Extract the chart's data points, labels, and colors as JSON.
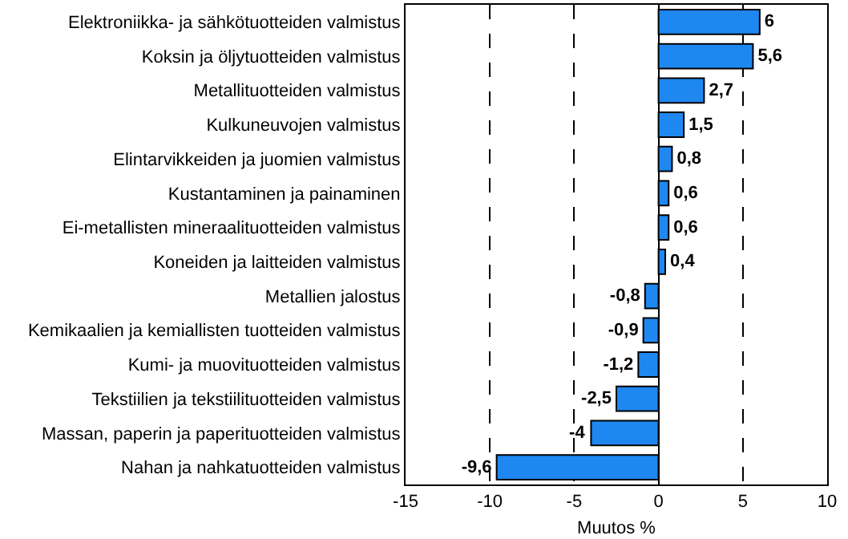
{
  "chart_data": {
    "type": "bar",
    "orientation": "horizontal",
    "xlabel": "Muutos %",
    "categories": [
      "Elektroniikka- ja sähkötuotteiden valmistus",
      "Koksin ja öljytuotteiden valmistus",
      "Metallituotteiden valmistus",
      "Kulkuneuvojen valmistus",
      "Elintarvikkeiden ja juomien valmistus",
      "Kustantaminen ja painaminen",
      "Ei-metallisten mineraalituotteiden valmistus",
      "Koneiden ja laitteiden valmistus",
      "Metallien jalostus",
      "Kemikaalien ja kemiallisten tuotteiden valmistus",
      "Kumi- ja muovituotteiden valmistus",
      "Tekstiilien ja tekstiilituotteiden valmistus",
      "Massan, paperin ja paperituotteiden valmistus",
      "Nahan ja nahkatuotteiden valmistus"
    ],
    "values": [
      6,
      5.6,
      2.7,
      1.5,
      0.8,
      0.6,
      0.6,
      0.4,
      -0.8,
      -0.9,
      -1.2,
      -2.5,
      -4,
      -9.6
    ],
    "value_labels": [
      "6",
      "5,6",
      "2,7",
      "1,5",
      "0,8",
      "0,6",
      "0,6",
      "0,4",
      "-0,8",
      "-0,9",
      "-1,2",
      "-2,5",
      "-4",
      "-9,6"
    ],
    "color": "#1e88f0",
    "xlim": [
      -15,
      10
    ],
    "xticks": [
      -15,
      -10,
      -5,
      0,
      5,
      10
    ],
    "grid": "x",
    "line_style": "dashed",
    "legend": false
  }
}
